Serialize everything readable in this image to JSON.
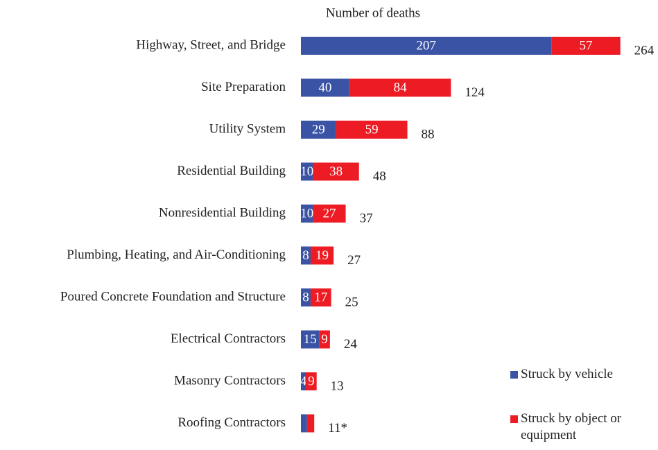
{
  "chart_data": {
    "type": "bar",
    "orientation": "horizontal",
    "stacked": true,
    "x_label": "Number of deaths",
    "categories": [
      "Highway, Street, and Bridge",
      "Site Preparation",
      "Utility System",
      "Residential Building",
      "Nonresidential Building",
      "Plumbing, Heating, and Air-Conditioning",
      "Poured Concrete Foundation and Structure",
      "Electrical Contractors",
      "Masonry Contractors",
      "Roofing Contractors"
    ],
    "series": [
      {
        "name": "Struck by vehicle",
        "color": "#3a53a4",
        "values": [
          207,
          40,
          29,
          10,
          10,
          8,
          8,
          15,
          4,
          5
        ],
        "value_labels": [
          "207",
          "40",
          "29",
          "10",
          "10",
          "8",
          "8",
          "15",
          "4",
          null
        ]
      },
      {
        "name": "Struck by object or equipment",
        "color": "#ed1c24",
        "values": [
          57,
          84,
          59,
          38,
          27,
          19,
          17,
          9,
          9,
          6
        ],
        "value_labels": [
          "57",
          "84",
          "59",
          "38",
          "27",
          "19",
          "17",
          "9",
          "9",
          null
        ]
      }
    ],
    "totals": [
      264,
      124,
      88,
      48,
      37,
      27,
      25,
      24,
      13,
      {
        "value": 11,
        "label": "11*"
      }
    ]
  }
}
